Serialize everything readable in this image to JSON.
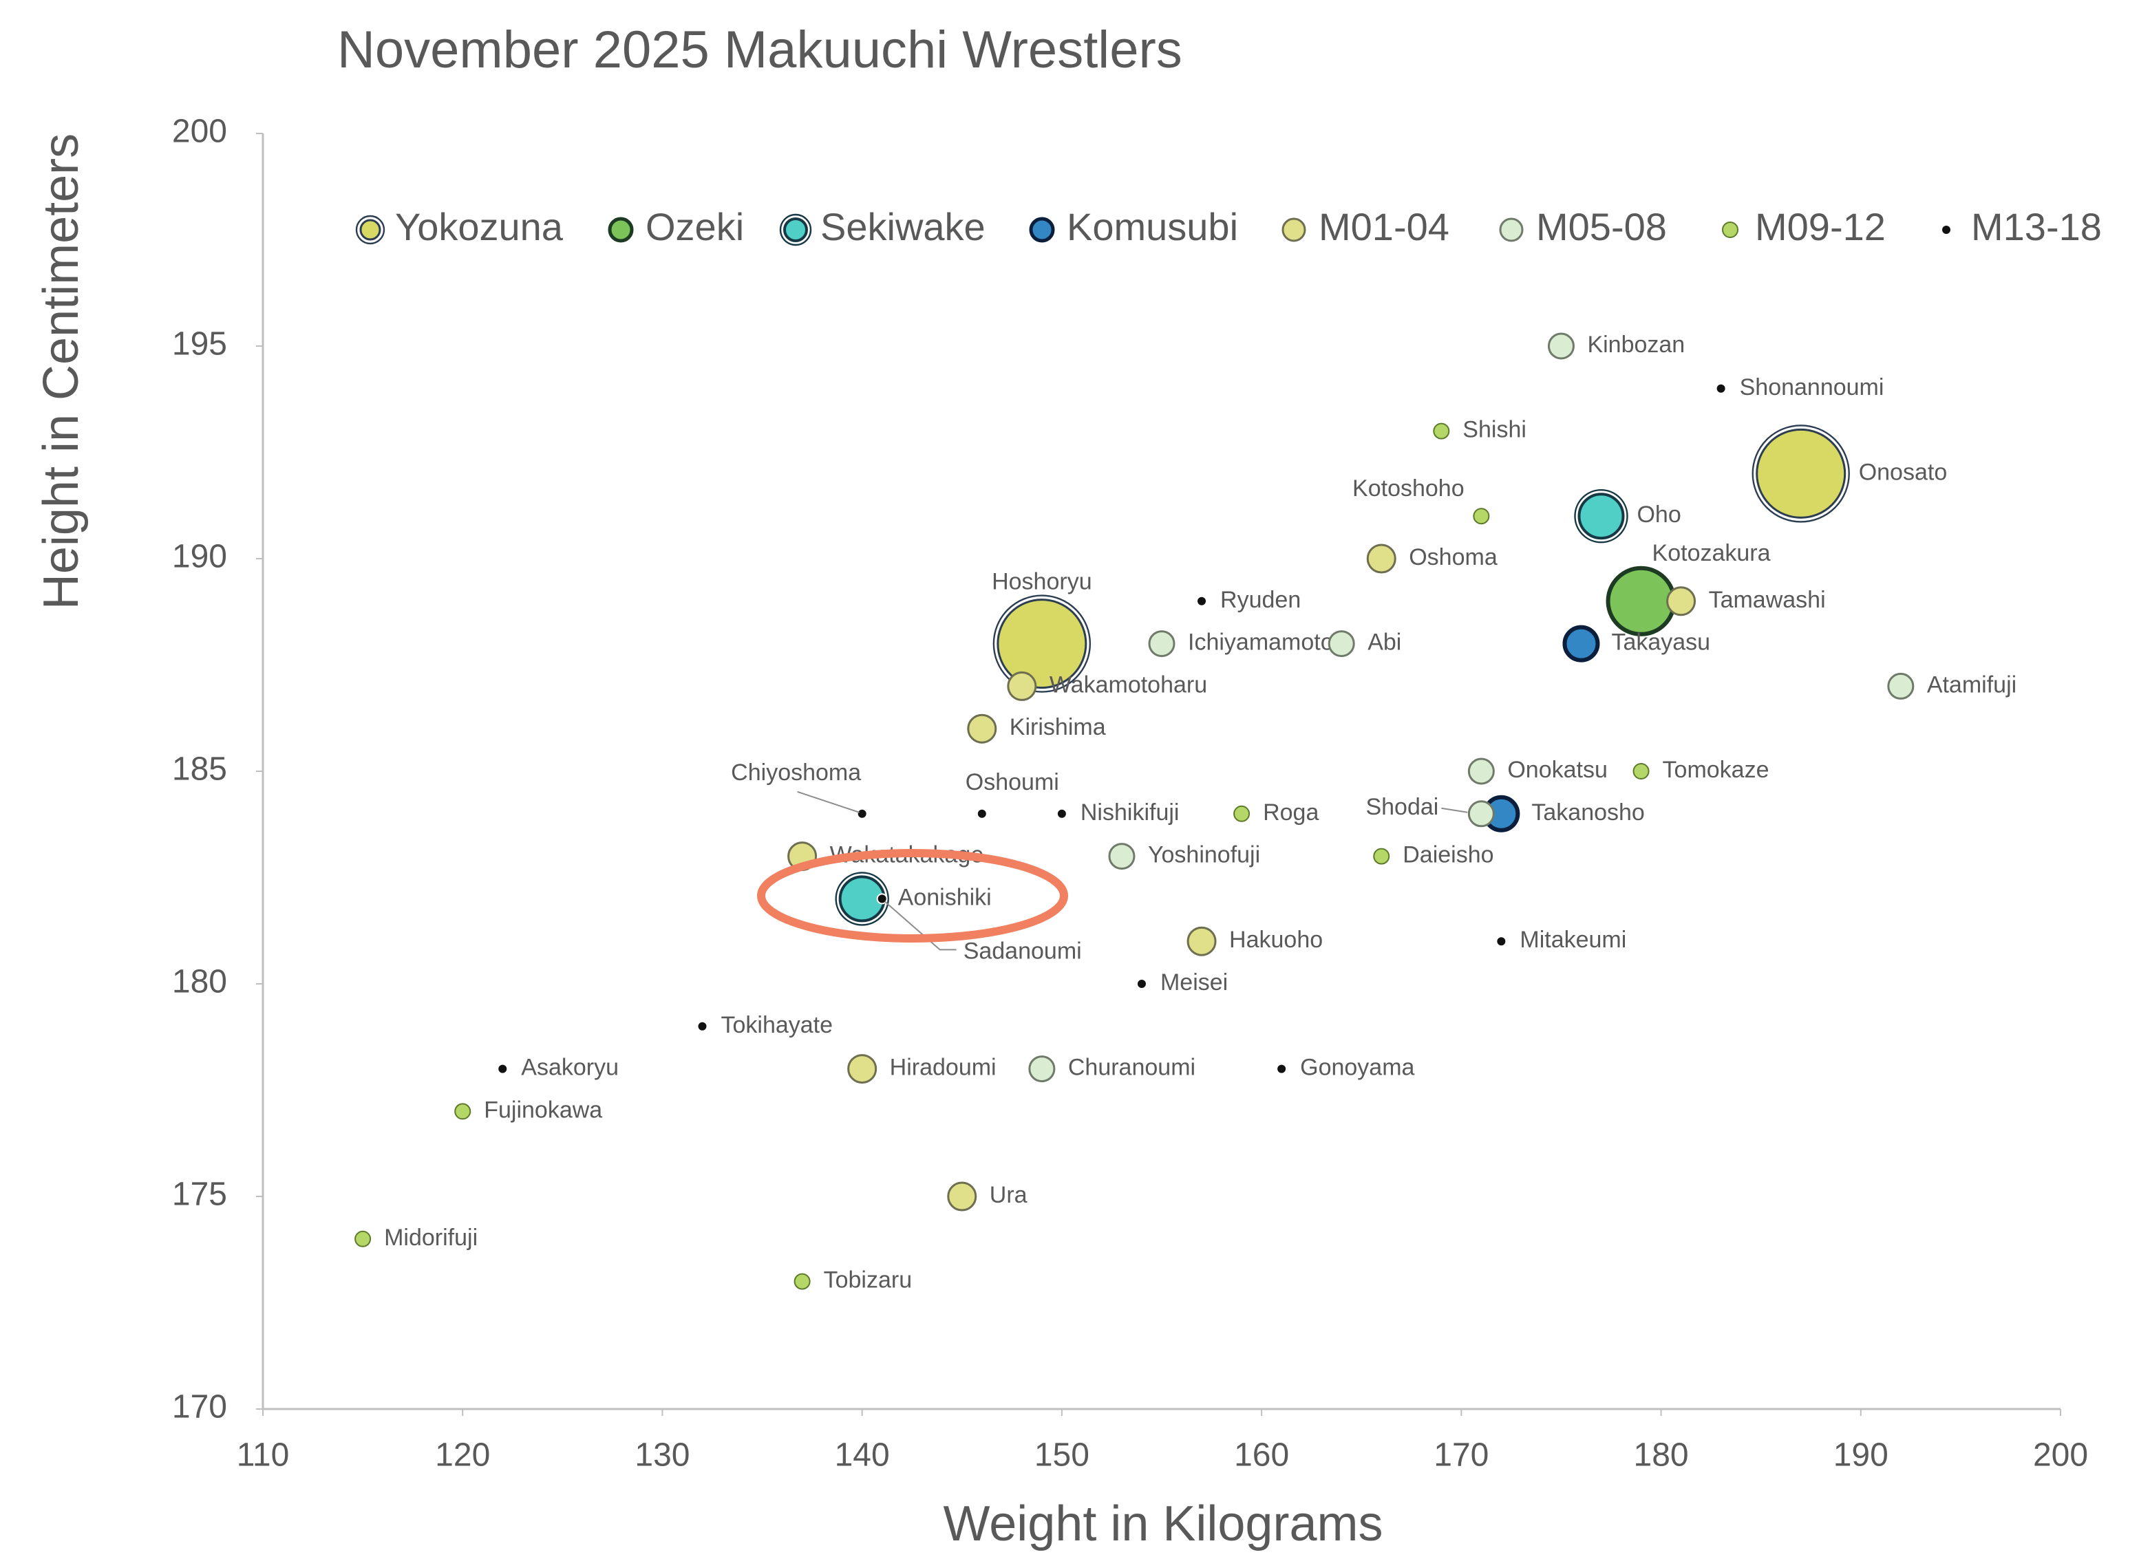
{
  "chart_data": {
    "type": "scatter",
    "title": "November 2025 Makuuchi Wrestlers",
    "x_label": "Weight in Kilograms",
    "y_label": "Height in Centimeters",
    "xlim": [
      110,
      200
    ],
    "xticks": [
      110,
      120,
      130,
      140,
      150,
      160,
      170,
      180,
      190,
      200
    ],
    "ylim": [
      170,
      200
    ],
    "yticks": [
      170,
      175,
      180,
      185,
      190,
      195,
      200
    ],
    "grid": false,
    "legend": "top",
    "series": [
      {
        "name": "Yokozuna",
        "color": "#d8d865",
        "x": [
          187,
          149
        ],
        "y": [
          192,
          188
        ],
        "labels": [
          "Onosato",
          "Hoshoryu"
        ]
      },
      {
        "name": "Ozeki",
        "color": "#7cc35a",
        "x": [
          179
        ],
        "y": [
          189
        ],
        "labels": [
          "Kotozakura"
        ]
      },
      {
        "name": "Sekiwake",
        "color": "#4fcfc6",
        "x": [
          177,
          140
        ],
        "y": [
          191,
          182
        ],
        "labels": [
          "Oho",
          "Aonishiki"
        ]
      },
      {
        "name": "Komusubi",
        "color": "#3287c4",
        "x": [
          176,
          172
        ],
        "y": [
          188,
          184
        ],
        "labels": [
          "Takayasu",
          "Takanosho"
        ]
      },
      {
        "name": "M01-04",
        "color": "#e0e08a",
        "x": [
          166,
          181,
          148,
          146,
          137,
          157,
          140,
          145
        ],
        "y": [
          190,
          189,
          187,
          186,
          183,
          181,
          178,
          175
        ],
        "labels": [
          "Oshoma",
          "Tamawashi",
          "Wakamotoharu",
          "Kirishima",
          "Wakatakakage",
          "Hakuoho",
          "Hiradoumi",
          "Ura"
        ]
      },
      {
        "name": "M05-08",
        "color": "#daedd2",
        "x": [
          175,
          155,
          164,
          192,
          171,
          171,
          153,
          149
        ],
        "y": [
          195,
          188,
          188,
          187,
          185,
          184,
          183,
          178
        ],
        "labels": [
          "Kinbozan",
          "Ichiyamamoto",
          "Abi",
          "Atamifuji",
          "Onokatsu",
          "Shodai",
          "Yoshinofuji",
          "Churanoumi"
        ]
      },
      {
        "name": "M09-12",
        "color": "#b4d768",
        "x": [
          169,
          171,
          179,
          159,
          166,
          120,
          115,
          137
        ],
        "y": [
          193,
          191,
          185,
          184,
          183,
          177,
          174,
          173
        ],
        "labels": [
          "Shishi",
          "Kotoshoho",
          "Tomokaze",
          "Roga",
          "Daieisho",
          "Fujinokawa",
          "Midorifuji",
          "Tobizaru"
        ]
      },
      {
        "name": "M13-18",
        "color": "#111111",
        "x": [
          183,
          157,
          140,
          146,
          150,
          141,
          172,
          154,
          132,
          122,
          161
        ],
        "y": [
          194,
          189,
          184,
          184,
          184,
          182,
          181,
          180,
          179,
          178,
          178
        ],
        "labels": [
          "Shonannoumi",
          "Ryuden",
          "Chiyoshoma",
          "Oshoumi",
          "Nishikifuji",
          "Sadanoumi",
          "Mitakeumi",
          "Meisei",
          "Tokihayate",
          "Asakoryu",
          "Gonoyama"
        ]
      }
    ]
  }
}
